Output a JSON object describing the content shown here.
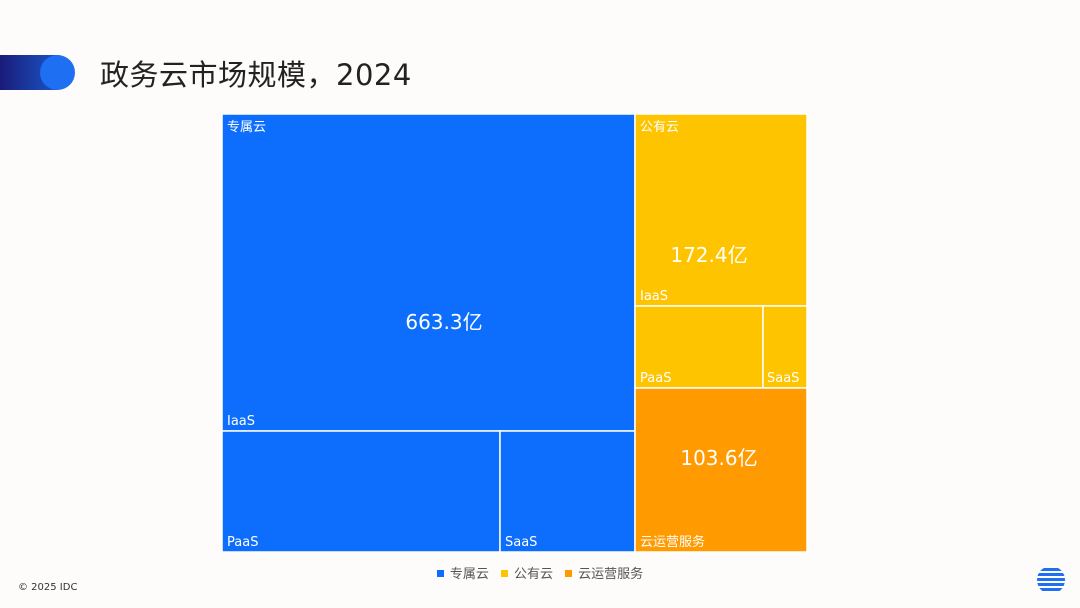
{
  "header": {
    "title": "政务云市场规模，2024"
  },
  "chart_data": {
    "type": "treemap",
    "title": "政务云市场规模，2024",
    "unit": "亿",
    "groups": [
      {
        "name": "专属云",
        "value_label": "663.3亿",
        "value": 663.3,
        "color": "#0d6efd",
        "children": [
          {
            "name": "IaaS"
          },
          {
            "name": "PaaS"
          },
          {
            "name": "SaaS"
          }
        ]
      },
      {
        "name": "公有云",
        "value_label": "172.4亿",
        "value": 172.4,
        "color": "#ffc400",
        "children": [
          {
            "name": "IaaS"
          },
          {
            "name": "PaaS"
          },
          {
            "name": "SaaS"
          }
        ]
      },
      {
        "name": "云运营服务",
        "value_label": "103.6亿",
        "value": 103.6,
        "color": "#ff9a00",
        "children": []
      }
    ],
    "legend": [
      {
        "label": "专属云",
        "color": "#0d6efd"
      },
      {
        "label": "公有云",
        "color": "#ffc400"
      },
      {
        "label": "云运营服务",
        "color": "#ff9a00"
      }
    ]
  },
  "footer": {
    "copyright": "© 2025 IDC"
  },
  "icons": {
    "logo": "idc-globe-icon",
    "accent": "header-accent-icon"
  }
}
